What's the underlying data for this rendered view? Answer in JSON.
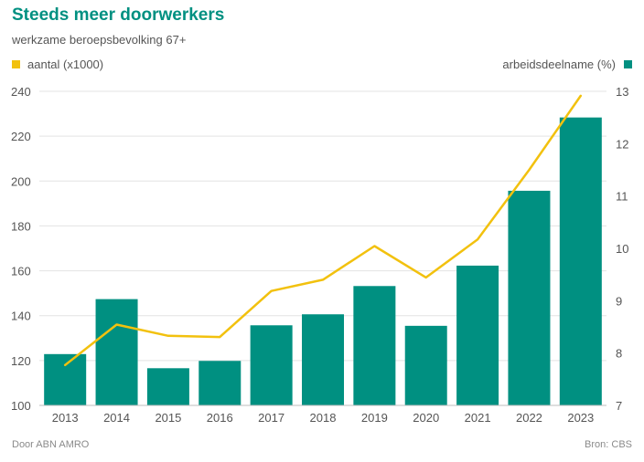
{
  "header": {
    "title": "Steeds meer doorwerkers",
    "subtitle": "werkzame beroepsbevolking 67+"
  },
  "legend": {
    "left_label": "aantal (x1000)",
    "right_label": "arbeidsdeelname (%)"
  },
  "footer": {
    "left": "Door ABN AMRO",
    "right": "Bron: CBS"
  },
  "colors": {
    "bar": "#009081",
    "line": "#F2C10E",
    "title": "#009081",
    "grid": "#e3e3e3"
  },
  "chart_data": {
    "type": "bar",
    "categories": [
      "2013",
      "2014",
      "2015",
      "2016",
      "2017",
      "2018",
      "2019",
      "2020",
      "2021",
      "2022",
      "2023"
    ],
    "series": [
      {
        "name": "arbeidsdeelname (%)",
        "type": "bar",
        "axis": "right",
        "values": [
          7.98,
          9.03,
          7.71,
          7.85,
          8.53,
          8.74,
          9.28,
          8.52,
          9.67,
          11.1,
          12.5
        ]
      },
      {
        "name": "aantal (x1000)",
        "type": "line",
        "axis": "left",
        "values": [
          118,
          136,
          131,
          130.5,
          151,
          156,
          171,
          157,
          174,
          205,
          238
        ]
      }
    ],
    "y_left": {
      "min": 100,
      "max": 240,
      "ticks": [
        100,
        120,
        140,
        160,
        180,
        200,
        220,
        240
      ]
    },
    "y_right": {
      "min": 7,
      "max": 13,
      "ticks": [
        7,
        8,
        9,
        10,
        11,
        12,
        13
      ]
    },
    "grid": true,
    "legend_placement": "top"
  }
}
